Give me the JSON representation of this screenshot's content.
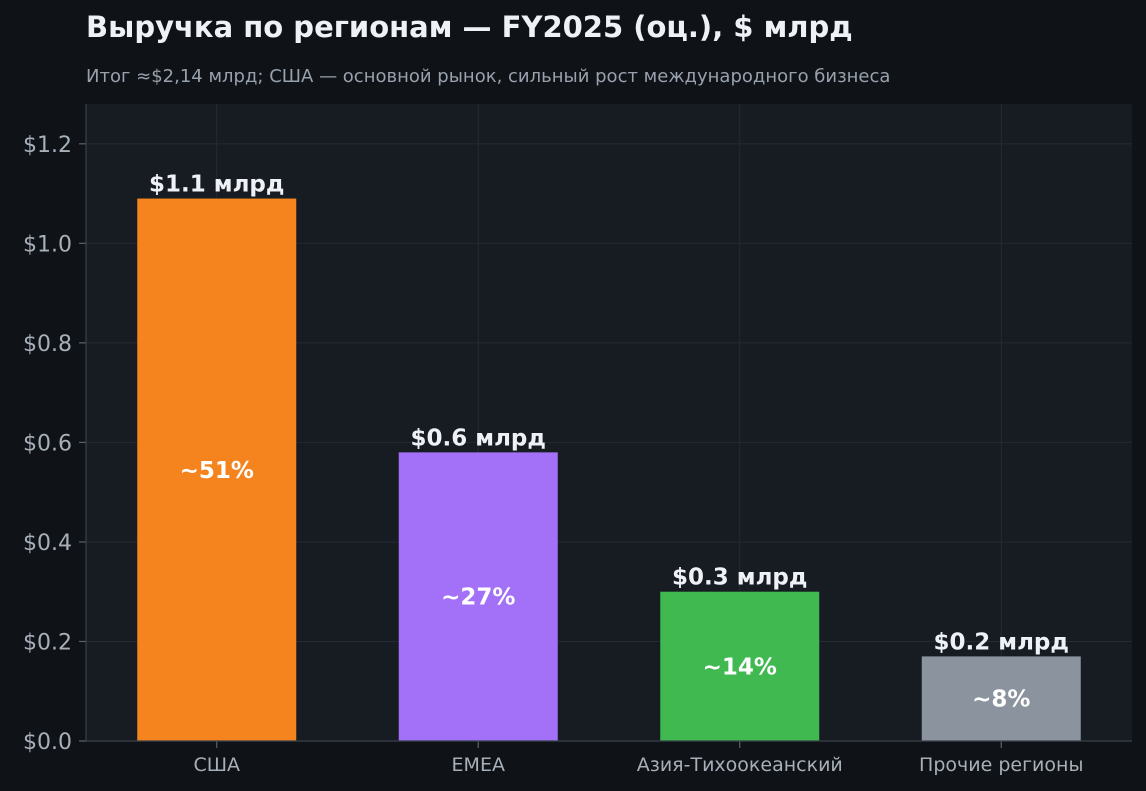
{
  "title": "Выручка по регионам — FY2025 (оц.), $ млрд",
  "subtitle": "Итог ≈$2,14 млрд; США — основной рынок, сильный рост международного бизнеса",
  "chart_data": {
    "type": "bar",
    "categories": [
      "США",
      "EMEA",
      "Азия-Тихоокеанский",
      "Прочие регионы"
    ],
    "values": [
      1.09,
      0.58,
      0.3,
      0.17
    ],
    "value_labels": [
      "$1.1 млрд",
      "$0.6 млрд",
      "$0.3 млрд",
      "$0.2 млрд"
    ],
    "share_labels": [
      "~51%",
      "~27%",
      "~14%",
      "~8%"
    ],
    "colors": [
      "#f5841f",
      "#a371f7",
      "#3fb950",
      "#8b949e"
    ],
    "ylim": [
      0,
      1.28
    ],
    "yticks": [
      0,
      0.2,
      0.4,
      0.6,
      0.8,
      1.0,
      1.2
    ],
    "ytick_labels": [
      "$0.0",
      "$0.2",
      "$0.4",
      "$0.6",
      "$0.8",
      "$1.0",
      "$1.2"
    ],
    "grid": true,
    "xlabel": "",
    "ylabel": ""
  }
}
